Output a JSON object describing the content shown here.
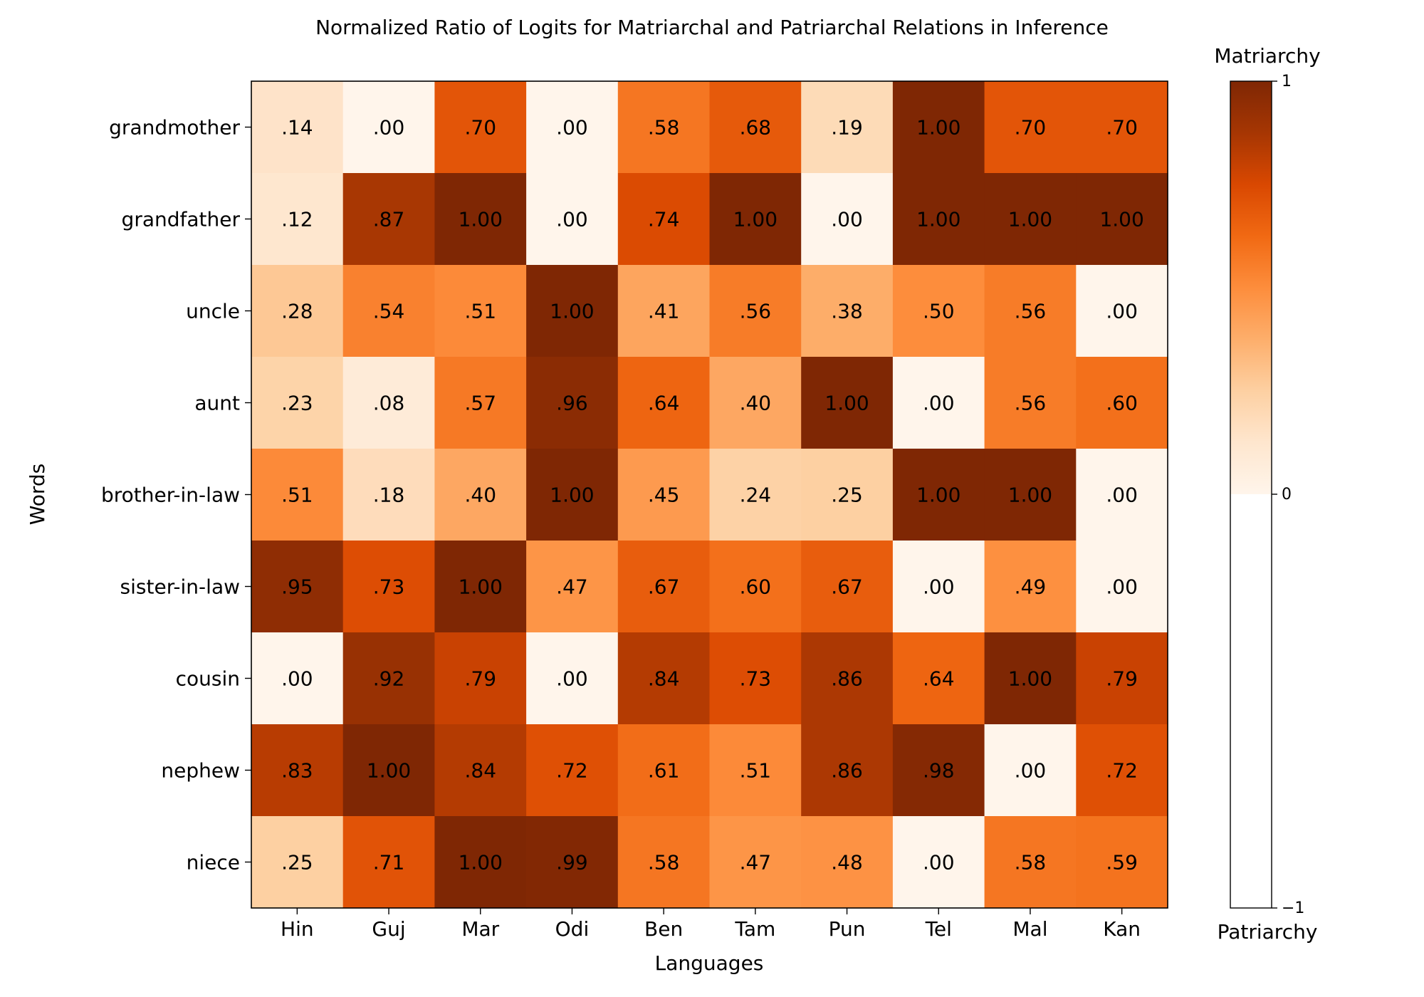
{
  "chart_data": {
    "type": "heatmap",
    "title": "Normalized Ratio of Logits for Matriarchal and Patriarchal Relations in Inference",
    "xlabel": "Languages",
    "ylabel": "Words",
    "x_categories": [
      "Hin",
      "Guj",
      "Mar",
      "Odi",
      "Ben",
      "Tam",
      "Pun",
      "Tel",
      "Mal",
      "Kan"
    ],
    "y_categories": [
      "grandmother",
      "grandfather",
      "uncle",
      "aunt",
      "brother-in-law",
      "sister-in-law",
      "cousin",
      "nephew",
      "niece"
    ],
    "values": [
      [
        0.14,
        0.0,
        0.7,
        0.0,
        0.58,
        0.68,
        0.19,
        1.0,
        0.7,
        0.7
      ],
      [
        0.12,
        0.87,
        1.0,
        0.0,
        0.74,
        1.0,
        0.0,
        1.0,
        1.0,
        1.0
      ],
      [
        0.28,
        0.54,
        0.51,
        1.0,
        0.41,
        0.56,
        0.38,
        0.5,
        0.56,
        0.0
      ],
      [
        0.23,
        0.08,
        0.57,
        0.96,
        0.64,
        0.4,
        1.0,
        0.0,
        0.56,
        0.6
      ],
      [
        0.51,
        0.18,
        0.4,
        1.0,
        0.45,
        0.24,
        0.25,
        1.0,
        1.0,
        0.0
      ],
      [
        0.95,
        0.73,
        1.0,
        0.47,
        0.67,
        0.6,
        0.67,
        0.0,
        0.49,
        0.0
      ],
      [
        0.0,
        0.92,
        0.79,
        0.0,
        0.84,
        0.73,
        0.86,
        0.64,
        1.0,
        0.79
      ],
      [
        0.83,
        1.0,
        0.84,
        0.72,
        0.61,
        0.51,
        0.86,
        0.98,
        0.0,
        0.72
      ],
      [
        0.25,
        0.71,
        1.0,
        0.99,
        0.58,
        0.47,
        0.48,
        0.0,
        0.58,
        0.59
      ]
    ],
    "cell_labels": [
      [
        ".14",
        ".00",
        ".70",
        ".00",
        ".58",
        ".68",
        ".19",
        "1.00",
        ".70",
        ".70"
      ],
      [
        ".12",
        ".87",
        "1.00",
        ".00",
        ".74",
        "1.00",
        ".00",
        "1.00",
        "1.00",
        "1.00"
      ],
      [
        ".28",
        ".54",
        ".51",
        "1.00",
        ".41",
        ".56",
        ".38",
        ".50",
        ".56",
        ".00"
      ],
      [
        ".23",
        ".08",
        ".57",
        ".96",
        ".64",
        ".40",
        "1.00",
        ".00",
        ".56",
        ".60"
      ],
      [
        ".51",
        ".18",
        ".40",
        "1.00",
        ".45",
        ".24",
        ".25",
        "1.00",
        "1.00",
        ".00"
      ],
      [
        ".95",
        ".73",
        "1.00",
        ".47",
        ".67",
        ".60",
        ".67",
        ".00",
        ".49",
        ".00"
      ],
      [
        ".00",
        ".92",
        ".79",
        ".00",
        ".84",
        ".73",
        ".86",
        ".64",
        "1.00",
        ".79"
      ],
      [
        ".83",
        "1.00",
        ".84",
        ".72",
        ".61",
        ".51",
        ".86",
        ".98",
        ".00",
        ".72"
      ],
      [
        ".25",
        ".71",
        "1.00",
        ".99",
        ".58",
        ".47",
        ".48",
        ".00",
        ".58",
        ".59"
      ]
    ],
    "colormap": "Oranges",
    "colorbar": {
      "top_label": "Matriarchy",
      "bottom_label": "Patriarchy",
      "range": [
        -1,
        1
      ],
      "ticks": [
        {
          "value": 1,
          "label": "1"
        },
        {
          "value": 0,
          "label": "0"
        },
        {
          "value": -1,
          "label": "−1"
        }
      ]
    },
    "grid": false
  }
}
